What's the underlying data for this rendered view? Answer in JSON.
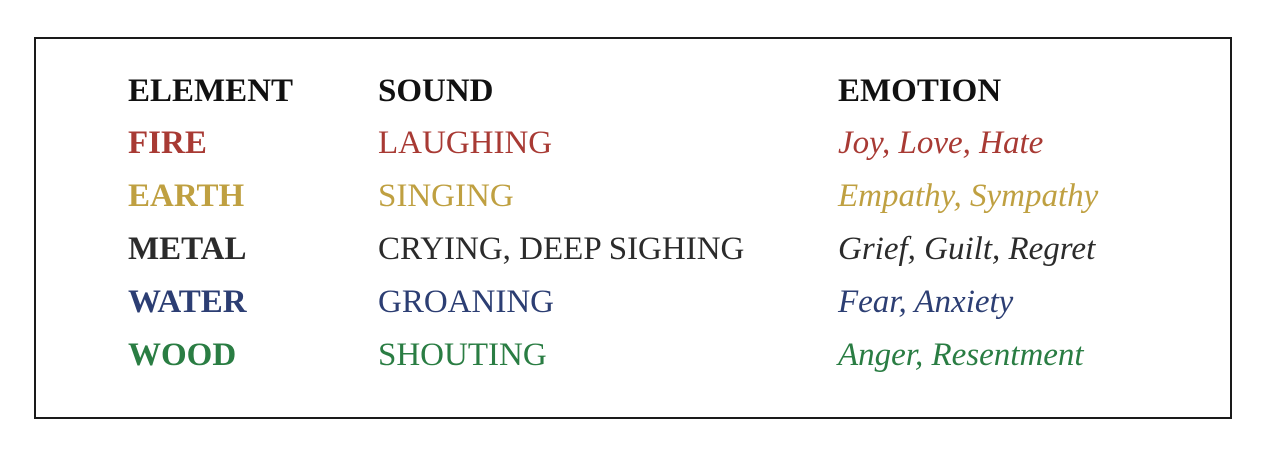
{
  "table": {
    "headers": {
      "element": "ELEMENT",
      "sound": "SOUND",
      "emotion": "EMOTION"
    },
    "rows": [
      {
        "element": "FIRE",
        "sound": "LAUGHING",
        "emotion": "Joy, Love, Hate",
        "color": "#a83a34"
      },
      {
        "element": "EARTH",
        "sound": "SINGING",
        "emotion": "Empathy, Sympathy",
        "color": "#bfa041"
      },
      {
        "element": "METAL",
        "sound": "CRYING, DEEP SIGHING",
        "emotion": "Grief, Guilt, Regret",
        "color": "#2b2b2b"
      },
      {
        "element": "WATER",
        "sound": "GROANING",
        "emotion": "Fear, Anxiety",
        "color": "#2c3e73"
      },
      {
        "element": "WOOD",
        "sound": "SHOUTING",
        "emotion": "Anger, Resentment",
        "color": "#2a7d43"
      }
    ]
  }
}
